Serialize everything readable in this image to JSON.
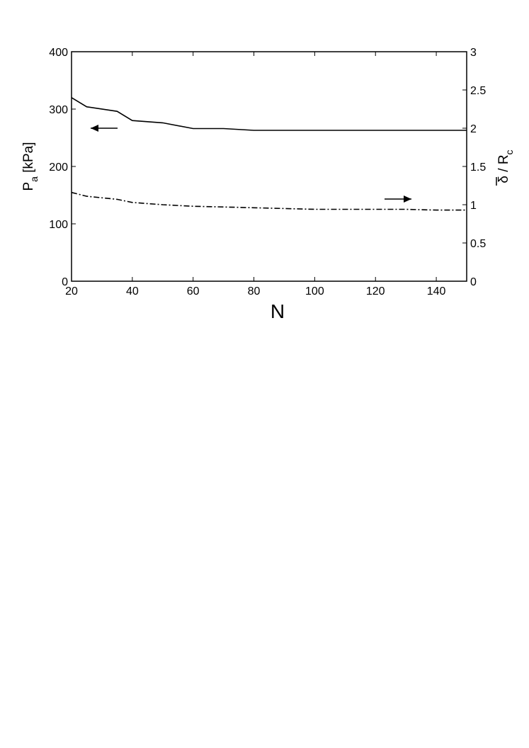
{
  "chart_data": {
    "type": "line",
    "xlabel": "N",
    "ylabel_left": {
      "main": "P",
      "sub": "a",
      "rest": " [kPa]"
    },
    "ylabel_right": {
      "main": "δ / R",
      "sub": "c",
      "overbar": true
    },
    "xlim": [
      20,
      150
    ],
    "ylim_left": [
      0,
      400
    ],
    "ylim_right": [
      0,
      3
    ],
    "x_ticks": [
      "20",
      "40",
      "60",
      "80",
      "100",
      "120",
      "140"
    ],
    "y_ticks_left": [
      "0",
      "100",
      "200",
      "300",
      "400"
    ],
    "y_ticks_right": [
      "0",
      "0.5",
      "1",
      "1.5",
      "2",
      "2.5",
      "3"
    ],
    "grid": false,
    "series": [
      {
        "axis": "left",
        "style": "solid",
        "x": [
          20,
          25,
          35,
          40,
          50,
          60,
          70,
          80,
          100,
          120,
          140,
          150
        ],
        "y": [
          320,
          304,
          296,
          280,
          276,
          266,
          266,
          263,
          263,
          263,
          263,
          263
        ]
      },
      {
        "axis": "right",
        "style": "dash-dot",
        "x": [
          20,
          25,
          35,
          40,
          50,
          60,
          70,
          80,
          90,
          100,
          110,
          120,
          130,
          140,
          150
        ],
        "y": [
          1.16,
          1.11,
          1.07,
          1.03,
          1.0,
          0.98,
          0.97,
          0.96,
          0.95,
          0.94,
          0.94,
          0.94,
          0.94,
          0.93,
          0.93
        ]
      }
    ],
    "annotations": [
      {
        "type": "arrow",
        "direction": "left",
        "points_to": "left-axis series"
      },
      {
        "type": "arrow",
        "direction": "right",
        "points_to": "right-axis series"
      }
    ]
  }
}
